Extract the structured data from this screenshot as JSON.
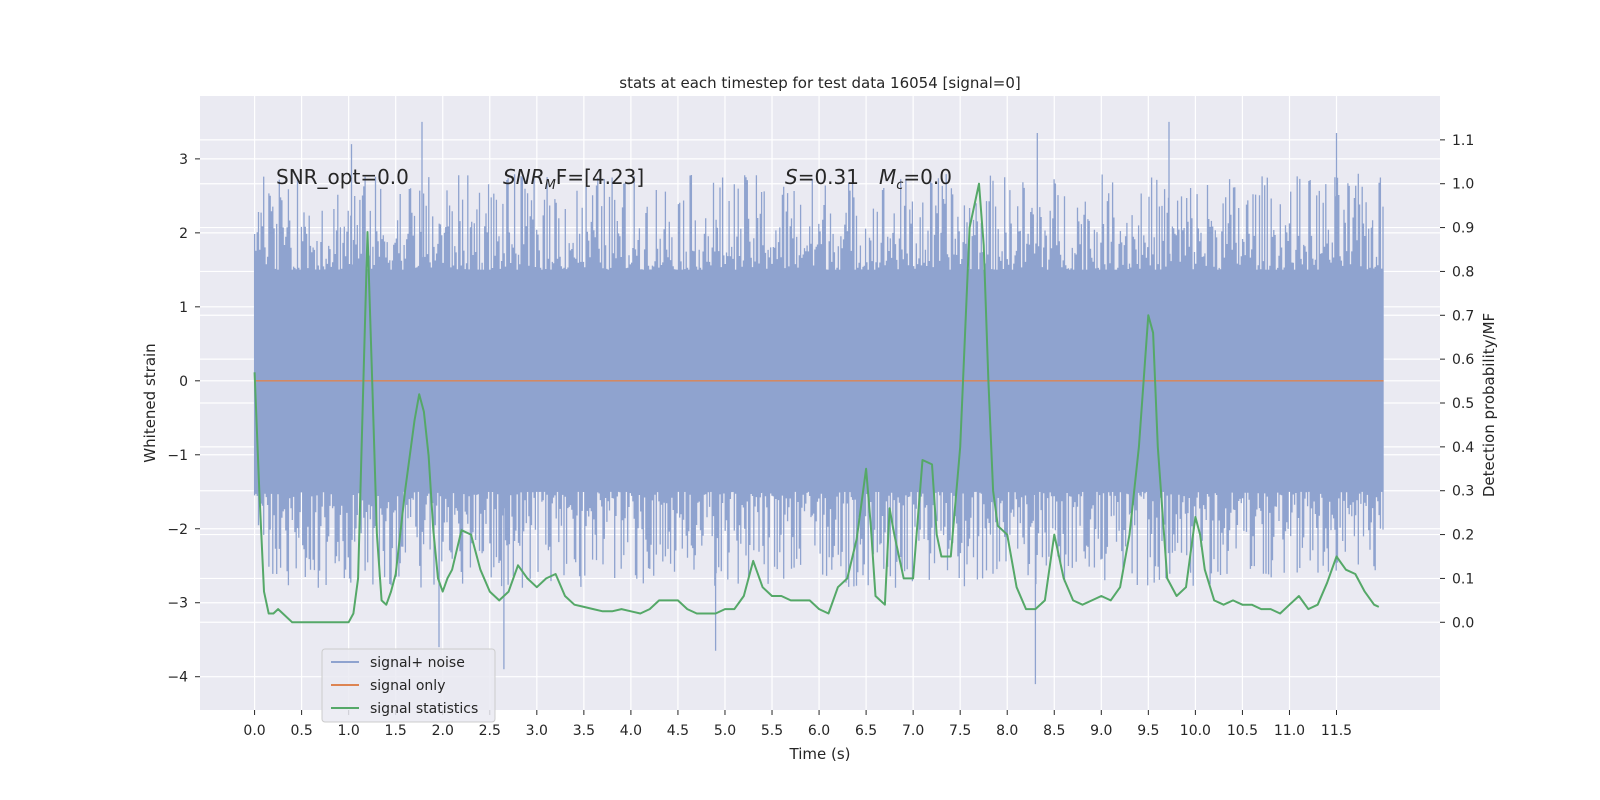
{
  "chart_data": {
    "type": "line",
    "title": "stats at each timestep for test data 16054 [signal=0]",
    "xlabel": "Time (s)",
    "ylabel": "Whitened strain",
    "y2label": "Detection probability/MF",
    "xlim": [
      -0.58,
      12.6
    ],
    "ylim": [
      -4.45,
      3.85
    ],
    "y2lim": [
      -0.2,
      1.2
    ],
    "x_ticks": [
      0.0,
      0.5,
      1.0,
      1.5,
      2.0,
      2.5,
      3.0,
      3.5,
      4.0,
      4.5,
      5.0,
      5.5,
      6.0,
      6.5,
      7.0,
      7.5,
      8.0,
      8.5,
      9.0,
      9.5,
      10.0,
      10.5,
      11.0,
      11.5
    ],
    "x_tick_labels": [
      "0.0",
      "0.5",
      "1.0",
      "1.5",
      "2.0",
      "2.5",
      "3.0",
      "3.5",
      "4.0",
      "4.5",
      "5.0",
      "5.5",
      "6.0",
      "6.5",
      "7.0",
      "7.5",
      "8.0",
      "8.5",
      "9.0",
      "9.5",
      "10.0",
      "10.5",
      "11.0",
      "11.5"
    ],
    "y_ticks": [
      -4,
      -3,
      -2,
      -1,
      0,
      1,
      2,
      3
    ],
    "y_tick_labels": [
      "−4",
      "−3",
      "−2",
      "−1",
      "0",
      "1",
      "2",
      "3"
    ],
    "y2_ticks": [
      0.0,
      0.1,
      0.2,
      0.3,
      0.4,
      0.5,
      0.6,
      0.7,
      0.8,
      0.9,
      1.0,
      1.1
    ],
    "y2_tick_labels": [
      "0.0",
      "0.1",
      "0.2",
      "0.3",
      "0.4",
      "0.5",
      "0.6",
      "0.7",
      "0.8",
      "0.9",
      "1.0",
      "1.1"
    ],
    "grid": true,
    "legend_position": "lower-left",
    "annotations": {
      "snr_opt": "SNR_opt=0.0",
      "snr_mf_main": "SNR",
      "snr_mf_sub": "M",
      "snr_mf_rest": "F=[4.23]",
      "s_main": "S",
      "s_rest": "=0.31",
      "mc_main": "M",
      "mc_sub": "c",
      "mc_rest": "=0.0"
    },
    "series": [
      {
        "name": "signal+ noise",
        "color": "#8fa3cf",
        "t_range": [
          0.0,
          12.0
        ],
        "envelope_typical": [
          -1.5,
          1.5
        ],
        "peak_extremes": [
          {
            "x": 1.03,
            "y": 3.2
          },
          {
            "x": 1.78,
            "y": 3.5
          },
          {
            "x": 1.96,
            "y": -3.6
          },
          {
            "x": 2.65,
            "y": -3.9
          },
          {
            "x": 4.9,
            "y": -3.65
          },
          {
            "x": 8.3,
            "y": -4.1
          },
          {
            "x": 8.32,
            "y": 3.35
          },
          {
            "x": 9.72,
            "y": 3.5
          },
          {
            "x": 11.5,
            "y": 3.35
          }
        ]
      },
      {
        "name": "signal only",
        "color": "#dd8452",
        "x": [
          0.0,
          12.0
        ],
        "y": [
          0.0,
          0.0
        ]
      },
      {
        "name": "signal statistics",
        "color": "#55a868",
        "axis": "right",
        "x": [
          0.0,
          0.05,
          0.1,
          0.15,
          0.2,
          0.25,
          0.3,
          0.4,
          0.5,
          0.6,
          0.7,
          0.8,
          0.9,
          1.0,
          1.05,
          1.1,
          1.15,
          1.2,
          1.25,
          1.3,
          1.35,
          1.4,
          1.45,
          1.5,
          1.6,
          1.7,
          1.75,
          1.8,
          1.85,
          1.9,
          1.95,
          2.0,
          2.05,
          2.1,
          2.2,
          2.3,
          2.4,
          2.5,
          2.6,
          2.7,
          2.8,
          2.9,
          3.0,
          3.1,
          3.2,
          3.3,
          3.4,
          3.5,
          3.6,
          3.7,
          3.8,
          3.9,
          4.0,
          4.1,
          4.2,
          4.3,
          4.4,
          4.5,
          4.6,
          4.7,
          4.8,
          4.9,
          5.0,
          5.1,
          5.2,
          5.3,
          5.4,
          5.5,
          5.6,
          5.7,
          5.8,
          5.9,
          6.0,
          6.1,
          6.2,
          6.3,
          6.4,
          6.5,
          6.55,
          6.6,
          6.7,
          6.75,
          6.8,
          6.9,
          7.0,
          7.1,
          7.2,
          7.25,
          7.3,
          7.4,
          7.5,
          7.6,
          7.7,
          7.75,
          7.8,
          7.85,
          7.9,
          8.0,
          8.1,
          8.2,
          8.3,
          8.4,
          8.5,
          8.6,
          8.7,
          8.8,
          8.9,
          9.0,
          9.1,
          9.2,
          9.3,
          9.4,
          9.5,
          9.55,
          9.6,
          9.7,
          9.8,
          9.9,
          10.0,
          10.05,
          10.1,
          10.2,
          10.3,
          10.4,
          10.5,
          10.6,
          10.7,
          10.8,
          10.9,
          11.0,
          11.1,
          11.2,
          11.3,
          11.4,
          11.5,
          11.6,
          11.7,
          11.8,
          11.9,
          11.95
        ],
        "y": [
          0.57,
          0.3,
          0.07,
          0.02,
          0.02,
          0.03,
          0.02,
          0.0,
          0.0,
          0.0,
          0.0,
          0.0,
          0.0,
          0.0,
          0.02,
          0.1,
          0.5,
          0.89,
          0.55,
          0.2,
          0.05,
          0.04,
          0.07,
          0.11,
          0.3,
          0.46,
          0.52,
          0.48,
          0.38,
          0.21,
          0.1,
          0.07,
          0.1,
          0.12,
          0.21,
          0.2,
          0.12,
          0.07,
          0.05,
          0.07,
          0.13,
          0.1,
          0.08,
          0.1,
          0.11,
          0.06,
          0.04,
          0.035,
          0.03,
          0.025,
          0.025,
          0.03,
          0.025,
          0.02,
          0.03,
          0.05,
          0.05,
          0.05,
          0.03,
          0.02,
          0.02,
          0.02,
          0.03,
          0.03,
          0.06,
          0.14,
          0.08,
          0.06,
          0.06,
          0.05,
          0.05,
          0.05,
          0.03,
          0.02,
          0.08,
          0.1,
          0.19,
          0.35,
          0.22,
          0.06,
          0.04,
          0.26,
          0.2,
          0.1,
          0.1,
          0.37,
          0.36,
          0.2,
          0.15,
          0.15,
          0.4,
          0.9,
          1.0,
          0.86,
          0.55,
          0.3,
          0.22,
          0.2,
          0.08,
          0.03,
          0.03,
          0.05,
          0.2,
          0.1,
          0.05,
          0.04,
          0.05,
          0.06,
          0.05,
          0.08,
          0.2,
          0.4,
          0.7,
          0.66,
          0.4,
          0.1,
          0.06,
          0.08,
          0.24,
          0.2,
          0.12,
          0.05,
          0.04,
          0.05,
          0.04,
          0.04,
          0.03,
          0.03,
          0.02,
          0.04,
          0.06,
          0.03,
          0.04,
          0.09,
          0.15,
          0.12,
          0.11,
          0.07,
          0.04,
          0.035
        ]
      }
    ]
  }
}
